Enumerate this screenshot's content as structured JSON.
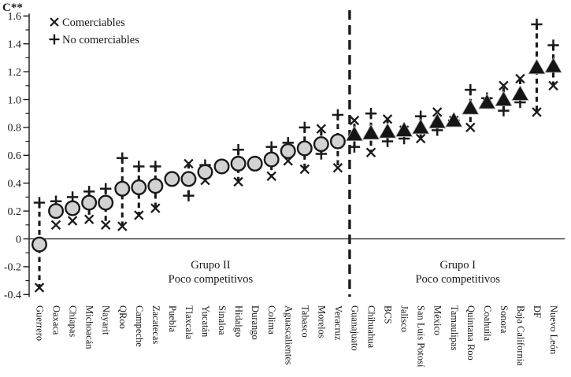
{
  "axis_title": "C**",
  "legend": {
    "items": [
      {
        "marker": "cross",
        "label": "Comerciables"
      },
      {
        "marker": "plus",
        "label": "No comerciables"
      }
    ]
  },
  "annotations": {
    "group2": {
      "line1": "Grupo II",
      "line2": "Poco competitivos"
    },
    "group1": {
      "line1": "Grupo I",
      "line2": "Poco competitivos"
    }
  },
  "colors": {
    "ink": "#1a1a1a",
    "circle_fill": "#d2d2d2",
    "triangle_fill": "#151515",
    "background": "#ffffff"
  },
  "chart_data": {
    "type": "scatter",
    "ylabel": "C**",
    "ylim": [
      -0.4,
      1.6
    ],
    "yticks": [
      1.6,
      1.4,
      1.2,
      1.0,
      0.8,
      0.6,
      0.4,
      0.2,
      0,
      -0.2,
      -0.4
    ],
    "ytick_labels": [
      "1.6",
      "1.4",
      "1.2",
      "1.0",
      "0.8",
      "0.6",
      "0.4",
      "0.2",
      "0",
      "-0.2",
      "-0.4"
    ],
    "grid": false,
    "legend_position": "top-left",
    "divider_between": [
      "Veracruz",
      "Guanajuato"
    ],
    "groups": [
      {
        "id": "II",
        "label": "Grupo II",
        "sublabel": "Poco competitivos",
        "marker": "circle"
      },
      {
        "id": "I",
        "label": "Grupo I",
        "sublabel": "Poco competitivos",
        "marker": "triangle"
      }
    ],
    "series_legend": [
      {
        "marker": "cross",
        "name": "Comerciables"
      },
      {
        "marker": "plus",
        "name": "No comerciables"
      }
    ],
    "states": [
      {
        "name": "Guerrero",
        "group": "II",
        "c": -0.04,
        "no_comerciables": 0.26,
        "comerciables": -0.35,
        "connector": true
      },
      {
        "name": "Oaxaca",
        "group": "II",
        "c": 0.2,
        "no_comerciables": 0.27,
        "comerciables": 0.1,
        "connector": false
      },
      {
        "name": "Chiapas",
        "group": "II",
        "c": 0.22,
        "no_comerciables": 0.3,
        "comerciables": 0.13,
        "connector": false
      },
      {
        "name": "Michoacán",
        "group": "II",
        "c": 0.26,
        "no_comerciables": 0.34,
        "comerciables": 0.14,
        "connector": true
      },
      {
        "name": "Nayarit",
        "group": "II",
        "c": 0.26,
        "no_comerciables": 0.36,
        "comerciables": 0.1,
        "connector": true
      },
      {
        "name": "QRoo",
        "group": "II",
        "c": 0.36,
        "no_comerciables": 0.58,
        "comerciables": 0.09,
        "connector": true
      },
      {
        "name": "Campeche",
        "group": "II",
        "c": 0.37,
        "no_comerciables": 0.52,
        "comerciables": 0.17,
        "connector": true
      },
      {
        "name": "Zacatecas",
        "group": "II",
        "c": 0.38,
        "no_comerciables": 0.52,
        "comerciables": 0.22,
        "connector": true
      },
      {
        "name": "Puebla",
        "group": "II",
        "c": 0.43,
        "no_comerciables": 0.43,
        "comerciables": 0.43,
        "connector": false
      },
      {
        "name": "Tlaxcala",
        "group": "II",
        "c": 0.43,
        "no_comerciables": 0.31,
        "comerciables": 0.54,
        "connector": true
      },
      {
        "name": "Yucatán",
        "group": "II",
        "c": 0.48,
        "no_comerciables": 0.53,
        "comerciables": 0.42,
        "connector": true
      },
      {
        "name": "Sinaloa",
        "group": "II",
        "c": 0.52,
        "no_comerciables": 0.52,
        "comerciables": 0.52,
        "connector": false
      },
      {
        "name": "Hidalgo",
        "group": "II",
        "c": 0.54,
        "no_comerciables": 0.64,
        "comerciables": 0.41,
        "connector": true
      },
      {
        "name": "Durango",
        "group": "II",
        "c": 0.54,
        "no_comerciables": 0.54,
        "comerciables": 0.54,
        "connector": false
      },
      {
        "name": "Colima",
        "group": "II",
        "c": 0.57,
        "no_comerciables": 0.66,
        "comerciables": 0.45,
        "connector": true
      },
      {
        "name": "Aguascalientes",
        "group": "II",
        "c": 0.63,
        "no_comerciables": 0.69,
        "comerciables": 0.56,
        "connector": true
      },
      {
        "name": "Tabasco",
        "group": "II",
        "c": 0.65,
        "no_comerciables": 0.8,
        "comerciables": 0.5,
        "connector": true
      },
      {
        "name": "Morelos",
        "group": "II",
        "c": 0.68,
        "no_comerciables": 0.61,
        "comerciables": 0.79,
        "connector": true
      },
      {
        "name": "Veracruz",
        "group": "II",
        "c": 0.7,
        "no_comerciables": 0.89,
        "comerciables": 0.51,
        "connector": true
      },
      {
        "name": "Guanajuato",
        "group": "I",
        "c": 0.75,
        "no_comerciables": 0.66,
        "comerciables": 0.85,
        "connector": true
      },
      {
        "name": "Chihuahua",
        "group": "I",
        "c": 0.76,
        "no_comerciables": 0.9,
        "comerciables": 0.62,
        "connector": true
      },
      {
        "name": "BCS",
        "group": "I",
        "c": 0.77,
        "no_comerciables": 0.7,
        "comerciables": 0.86,
        "connector": true
      },
      {
        "name": "Jalisco",
        "group": "I",
        "c": 0.78,
        "no_comerciables": 0.72,
        "comerciables": 0.78,
        "connector": false
      },
      {
        "name": "San Luis Potosí",
        "group": "I",
        "c": 0.8,
        "no_comerciables": 0.88,
        "comerciables": 0.72,
        "connector": true
      },
      {
        "name": "México",
        "group": "I",
        "c": 0.84,
        "no_comerciables": 0.78,
        "comerciables": 0.91,
        "connector": true
      },
      {
        "name": "Tamaulipas",
        "group": "I",
        "c": 0.85,
        "no_comerciables": 0.85,
        "comerciables": 0.85,
        "connector": false
      },
      {
        "name": "Quintana Roo",
        "group": "I",
        "c": 0.94,
        "no_comerciables": 1.07,
        "comerciables": 0.8,
        "connector": true
      },
      {
        "name": "Coahuila",
        "group": "I",
        "c": 0.98,
        "no_comerciables": 1.01,
        "comerciables": 0.98,
        "connector": false
      },
      {
        "name": "Sonora",
        "group": "I",
        "c": 1.0,
        "no_comerciables": 0.92,
        "comerciables": 1.1,
        "connector": true
      },
      {
        "name": "Baja California",
        "group": "I",
        "c": 1.04,
        "no_comerciables": 0.98,
        "comerciables": 1.15,
        "connector": true
      },
      {
        "name": "DF",
        "group": "I",
        "c": 1.23,
        "no_comerciables": 1.54,
        "comerciables": 0.91,
        "connector": true
      },
      {
        "name": "Nuevo León",
        "group": "I",
        "c": 1.24,
        "no_comerciables": 1.39,
        "comerciables": 1.1,
        "connector": true
      }
    ]
  }
}
